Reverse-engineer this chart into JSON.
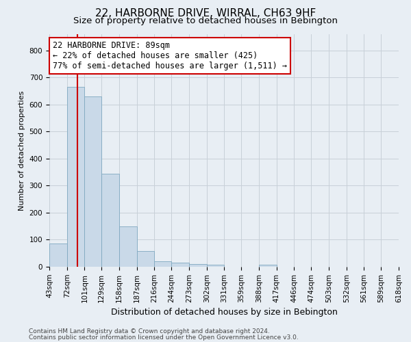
{
  "title": "22, HARBORNE DRIVE, WIRRAL, CH63 9HF",
  "subtitle": "Size of property relative to detached houses in Bebington",
  "xlabel": "Distribution of detached houses by size in Bebington",
  "ylabel": "Number of detached properties",
  "footer_line1": "Contains HM Land Registry data © Crown copyright and database right 2024.",
  "footer_line2": "Contains public sector information licensed under the Open Government Licence v3.0.",
  "property_size": 89,
  "annotation_line1": "22 HARBORNE DRIVE: 89sqm",
  "annotation_line2": "← 22% of detached houses are smaller (425)",
  "annotation_line3": "77% of semi-detached houses are larger (1,511) →",
  "bin_edges": [
    43,
    72,
    101,
    129,
    158,
    187,
    216,
    244,
    273,
    302,
    331,
    359,
    388,
    417,
    446,
    474,
    503,
    532,
    561,
    589,
    618
  ],
  "bar_heights": [
    85,
    665,
    630,
    345,
    148,
    57,
    20,
    15,
    11,
    8,
    0,
    0,
    8,
    0,
    0,
    0,
    0,
    0,
    0,
    0
  ],
  "bar_color": "#c9d9e8",
  "bar_edge_color": "#7fa8c0",
  "vline_color": "#cc0000",
  "vline_x": 89,
  "annotation_box_color": "#ffffff",
  "annotation_box_edge": "#cc0000",
  "ylim": [
    0,
    860
  ],
  "yticks": [
    0,
    100,
    200,
    300,
    400,
    500,
    600,
    700,
    800
  ],
  "grid_color": "#c8d0d8",
  "background_color": "#e8eef4",
  "title_fontsize": 11,
  "subtitle_fontsize": 9.5,
  "annotation_fontsize": 8.5,
  "tick_fontsize": 7.5,
  "ylabel_fontsize": 8,
  "xlabel_fontsize": 9
}
